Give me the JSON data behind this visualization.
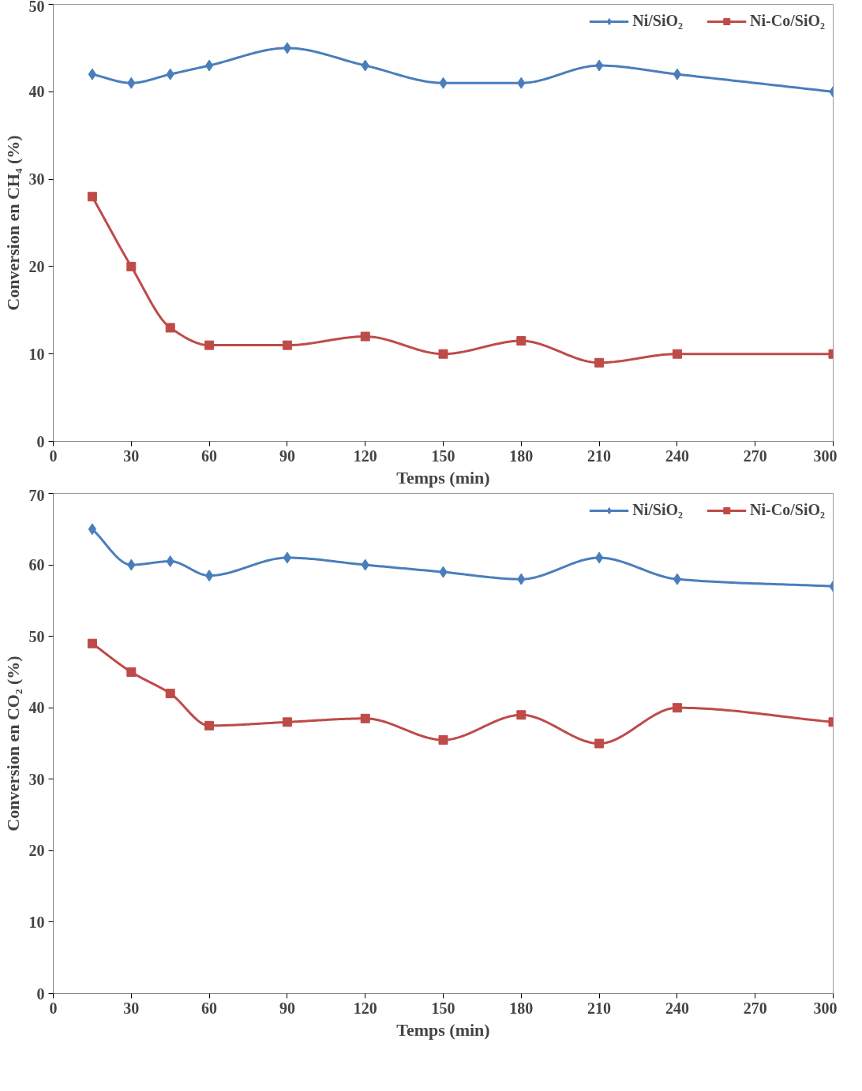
{
  "chart_data": [
    {
      "type": "line",
      "ylabel": "Conversion en CH₄ (%)",
      "xlabel": "Temps (min)",
      "xlim": [
        0,
        300
      ],
      "xticks": [
        0,
        30,
        60,
        90,
        120,
        150,
        180,
        210,
        240,
        270,
        300
      ],
      "ylim": [
        0,
        50
      ],
      "yticks": [
        0,
        10,
        20,
        30,
        40,
        50
      ],
      "grid": false,
      "legend": "top right",
      "x": [
        15,
        30,
        45,
        60,
        90,
        120,
        150,
        180,
        210,
        240,
        300
      ],
      "series": [
        {
          "name": "Ni/SiO₂",
          "color": "#4a7ebb",
          "marker": "diamond",
          "values": [
            42,
            41,
            42,
            43,
            45,
            43,
            41,
            41,
            43,
            42,
            40
          ]
        },
        {
          "name": "Ni-Co/SiO₂",
          "color": "#be4b48",
          "marker": "square",
          "values": [
            28,
            20,
            13,
            11,
            11,
            12,
            10,
            11.5,
            9,
            10,
            10
          ]
        }
      ]
    },
    {
      "type": "line",
      "ylabel": "Conversion en CO₂ (%)",
      "xlabel": "Temps (min)",
      "xlim": [
        0,
        300
      ],
      "xticks": [
        0,
        30,
        60,
        90,
        120,
        150,
        180,
        210,
        240,
        270,
        300
      ],
      "ylim": [
        0,
        70
      ],
      "yticks": [
        0,
        10,
        20,
        30,
        40,
        50,
        60,
        70
      ],
      "grid": false,
      "legend": "top right",
      "x": [
        15,
        30,
        45,
        60,
        90,
        120,
        150,
        180,
        210,
        240,
        300
      ],
      "series": [
        {
          "name": "Ni/SiO₂",
          "color": "#4a7ebb",
          "marker": "diamond",
          "values": [
            65,
            60,
            60.5,
            58.5,
            61,
            60,
            59,
            58,
            61,
            58,
            57
          ]
        },
        {
          "name": "Ni-Co/SiO₂",
          "color": "#be4b48",
          "marker": "square",
          "values": [
            49,
            45,
            42,
            37.5,
            38,
            38.5,
            35.5,
            39,
            35,
            40,
            38
          ]
        }
      ]
    }
  ]
}
